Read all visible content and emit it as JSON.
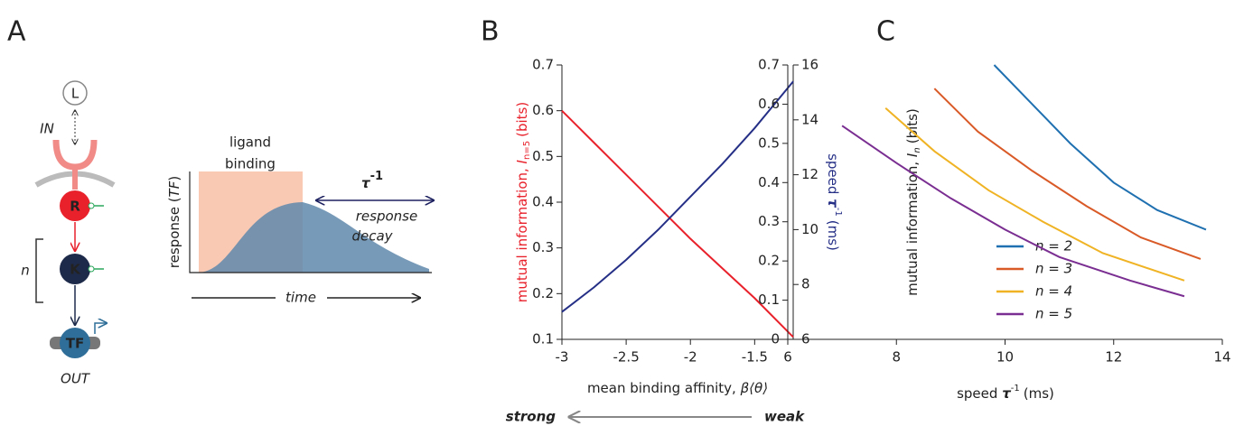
{
  "panel_labels": [
    "A",
    "B",
    "C"
  ],
  "diagram": {
    "ligand": "L",
    "input": "IN",
    "receptor": "R",
    "kinase": "K",
    "tf": "TF",
    "output": "OUT",
    "cascade_length": "n",
    "binding_label": [
      "ligand",
      "binding"
    ],
    "response_axis": [
      "response (",
      "TF",
      ")"
    ],
    "time_label": "time",
    "tau": "τ",
    "tau_exp": "-1",
    "decay_label": [
      "response",
      "decay"
    ]
  },
  "chart_data": [
    {
      "type": "line",
      "xlabel": {
        "text": "mean binding affinity, ",
        "var": "β⟨θ⟩"
      },
      "ylabel": {
        "text": "mutual information, ",
        "var": "I",
        "sub": "n=5",
        "unit": "(bits)"
      },
      "y2label": {
        "text": "speed ",
        "var": "τ",
        "sup": "-1",
        "unit": "(ms)"
      },
      "direction": {
        "left": "strong",
        "right": "weak"
      },
      "x": [
        -3,
        -2.75,
        -2.5,
        -2.25,
        -2,
        -1.75,
        -1.5,
        -1.2
      ],
      "series": [
        {
          "color": "#e8212b",
          "values": [
            0.6,
            0.53,
            0.46,
            0.39,
            0.32,
            0.255,
            0.19,
            0.105
          ]
        },
        {
          "color": "#252f86",
          "axis": "y2",
          "values": [
            7.0,
            7.9,
            8.9,
            10.0,
            11.2,
            12.4,
            13.7,
            15.4
          ]
        }
      ],
      "xlim": [
        -3,
        -1.2
      ],
      "xticks": [
        -3,
        -2.5,
        -2,
        -1.5
      ],
      "ylim": [
        0.1,
        0.7
      ],
      "yticks": [
        0.1,
        0.2,
        0.3,
        0.4,
        0.5,
        0.6,
        0.7
      ],
      "y2lim": [
        6,
        16
      ],
      "y2ticks": [
        6,
        8,
        10,
        12,
        14,
        16
      ]
    },
    {
      "type": "line",
      "xlabel": {
        "text": "speed ",
        "var": "τ",
        "sup": "-1",
        "unit": "(ms)"
      },
      "ylabel": {
        "text": "mutual information, ",
        "var": "I",
        "sub": "n",
        "unit": "(bits)"
      },
      "series": [
        {
          "name": "n = 2",
          "color": "#1f70b0",
          "x": [
            9.8,
            10.5,
            11.2,
            12,
            12.8,
            13.7
          ],
          "values": [
            0.7,
            0.6,
            0.5,
            0.4,
            0.33,
            0.28
          ]
        },
        {
          "name": "n = 3",
          "color": "#d95a27",
          "x": [
            8.7,
            9.5,
            10.5,
            11.5,
            12.5,
            13.6
          ],
          "values": [
            0.64,
            0.53,
            0.43,
            0.34,
            0.26,
            0.205
          ]
        },
        {
          "name": "n = 4",
          "color": "#efb324",
          "x": [
            7.8,
            8.7,
            9.7,
            10.7,
            11.8,
            13.3
          ],
          "values": [
            0.59,
            0.48,
            0.38,
            0.3,
            0.22,
            0.15
          ]
        },
        {
          "name": "n = 5",
          "color": "#7a2e91",
          "x": [
            7,
            8,
            9,
            10,
            11,
            12.3,
            13.3
          ],
          "values": [
            0.545,
            0.45,
            0.36,
            0.28,
            0.21,
            0.15,
            0.11
          ]
        }
      ],
      "xlim": [
        6,
        14
      ],
      "xticks": [
        6,
        8,
        10,
        12,
        14
      ],
      "ylim": [
        0,
        0.7
      ],
      "yticks": [
        0,
        0.1,
        0.2,
        0.3,
        0.4,
        0.5,
        0.6,
        0.7
      ]
    }
  ]
}
